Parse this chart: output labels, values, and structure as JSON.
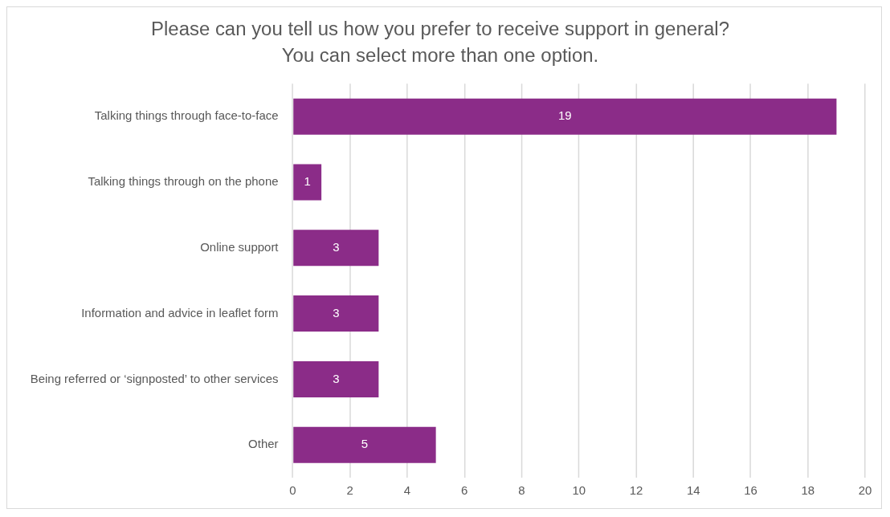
{
  "chart_data": {
    "type": "bar",
    "orientation": "horizontal",
    "title": "Please can you tell us how you prefer to receive support in general?",
    "subtitle": "You can select more than one option.",
    "categories": [
      "Talking things through face-to-face",
      "Talking things through on the phone",
      "Online support",
      "Information and advice in leaflet form",
      "Being referred or ‘signposted’ to other services",
      "Other"
    ],
    "values": [
      19,
      1,
      3,
      3,
      3,
      5
    ],
    "color": "#8b2c88",
    "xlim": [
      0,
      20
    ],
    "xticks": [
      0,
      2,
      4,
      6,
      8,
      10,
      12,
      14,
      16,
      18,
      20
    ],
    "grid": "x",
    "data_labels": true,
    "legend": false
  }
}
